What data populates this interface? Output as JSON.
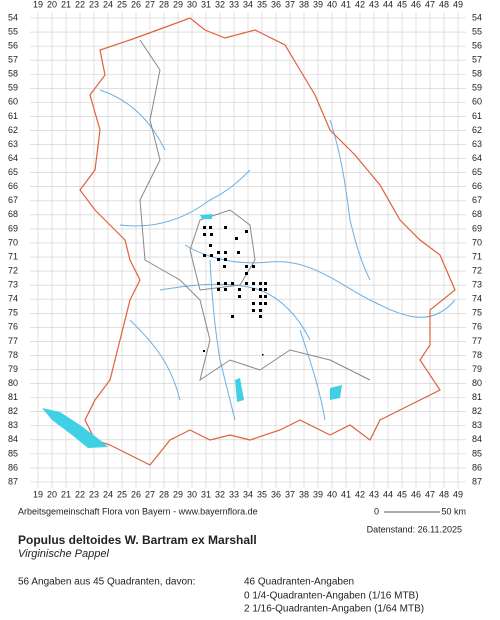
{
  "map": {
    "columns": [
      19,
      20,
      21,
      22,
      23,
      24,
      25,
      26,
      27,
      28,
      29,
      30,
      31,
      32,
      33,
      34,
      35,
      36,
      37,
      38,
      39,
      40,
      41,
      42,
      43,
      44,
      45,
      46,
      47,
      48,
      49
    ],
    "rows": [
      54,
      55,
      56,
      57,
      58,
      59,
      60,
      61,
      62,
      63,
      64,
      65,
      66,
      67,
      68,
      69,
      70,
      71,
      72,
      73,
      74,
      75,
      76,
      77,
      78,
      79,
      80,
      81,
      82,
      83,
      84,
      85,
      86,
      87
    ],
    "scale_start": "0",
    "scale_end": "50 km"
  },
  "footer": {
    "credit": "Arbeitsgemeinschaft Flora von Bayern - www.bayernflora.de",
    "date": "Datenstand: 26.11.2025",
    "species": "Populus deltoides W. Bartram ex Marshall",
    "common_name": "Virginische Pappel",
    "summary": "56 Angaben aus 45 Quadranten, davon:",
    "details": [
      "46 Quadranten-Angaben",
      "0 1/4-Quadranten-Angaben (1/16 MTB)",
      "2 1/16-Quadranten-Angaben (1/64 MTB)"
    ]
  }
}
